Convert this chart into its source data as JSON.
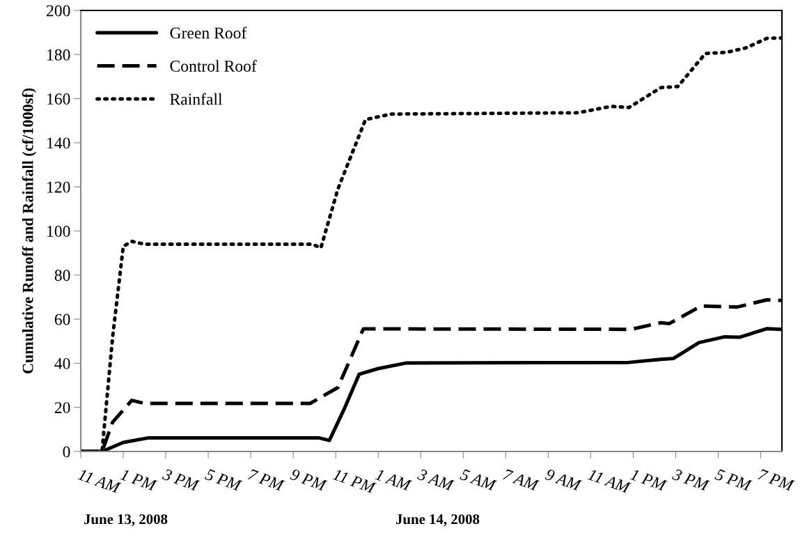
{
  "chart_data": {
    "type": "line",
    "ylabel": "Cumulative Runoff and Rainfall (cf/1000sf)",
    "xlim": [
      "2008-06-13T11:00",
      "2008-06-14T20:00"
    ],
    "xticks": [
      {
        "value": "2008-06-13T11:00",
        "label": "11 AM"
      },
      {
        "value": "2008-06-13T13:00",
        "label": "1 PM"
      },
      {
        "value": "2008-06-13T15:00",
        "label": "3 PM"
      },
      {
        "value": "2008-06-13T17:00",
        "label": "5 PM"
      },
      {
        "value": "2008-06-13T19:00",
        "label": "7 PM"
      },
      {
        "value": "2008-06-13T21:00",
        "label": "9 PM"
      },
      {
        "value": "2008-06-13T23:00",
        "label": "11 PM"
      },
      {
        "value": "2008-06-14T01:00",
        "label": "1 AM"
      },
      {
        "value": "2008-06-14T03:00",
        "label": "3 AM"
      },
      {
        "value": "2008-06-14T05:00",
        "label": "5 AM"
      },
      {
        "value": "2008-06-14T07:00",
        "label": "7 AM"
      },
      {
        "value": "2008-06-14T09:00",
        "label": "9 AM"
      },
      {
        "value": "2008-06-14T11:00",
        "label": "11 AM"
      },
      {
        "value": "2008-06-14T13:00",
        "label": "1 PM"
      },
      {
        "value": "2008-06-14T15:00",
        "label": "3 PM"
      },
      {
        "value": "2008-06-14T17:00",
        "label": "5 PM"
      },
      {
        "value": "2008-06-14T19:00",
        "label": "7 PM"
      }
    ],
    "ylim": [
      0,
      200
    ],
    "yticks": [
      0,
      20,
      40,
      60,
      80,
      100,
      120,
      140,
      160,
      180,
      200
    ],
    "grid": false,
    "legend": "top left",
    "marker": "none",
    "annotations": [
      "June 13, 2008",
      "June 14, 2008"
    ],
    "series": [
      {
        "name": "Green Roof",
        "color": "#000000",
        "line_style": "solid",
        "x": [
          "2008-06-13T11:00",
          "2008-06-13T12:00",
          "2008-06-13T13:00",
          "2008-06-13T14:12",
          "2008-06-13T22:12",
          "2008-06-13T22:42",
          "2008-06-13T23:24",
          "2008-06-14T00:06",
          "2008-06-14T01:00",
          "2008-06-14T02:18",
          "2008-06-14T12:48",
          "2008-06-14T14:18",
          "2008-06-14T14:54",
          "2008-06-14T16:06",
          "2008-06-14T17:18",
          "2008-06-14T18:00",
          "2008-06-14T19:18",
          "2008-06-14T20:00"
        ],
        "values": [
          0,
          0,
          4.1,
          6.2,
          6.2,
          5,
          19.3,
          35,
          37.6,
          40.1,
          40.4,
          41.8,
          42.2,
          49.4,
          52,
          51.8,
          55.7,
          55.4
        ]
      },
      {
        "name": "Control Roof",
        "color": "#000000",
        "line_style": "dashed",
        "x": [
          "2008-06-13T11:00",
          "2008-06-13T12:00",
          "2008-06-13T12:30",
          "2008-06-13T13:24",
          "2008-06-13T14:00",
          "2008-06-13T21:48",
          "2008-06-13T23:06",
          "2008-06-14T00:18",
          "2008-06-14T00:36",
          "2008-06-14T12:54",
          "2008-06-14T14:18",
          "2008-06-14T14:42",
          "2008-06-14T16:12",
          "2008-06-14T17:54",
          "2008-06-14T19:18",
          "2008-06-14T20:00"
        ],
        "values": [
          0,
          0,
          13.3,
          23.2,
          21.8,
          21.8,
          29,
          55.6,
          55.6,
          55.4,
          58.4,
          58,
          66,
          65.5,
          68.8,
          68.5
        ]
      },
      {
        "name": "Rainfall",
        "color": "#000000",
        "line_style": "dotted",
        "x": [
          "2008-06-13T11:00",
          "2008-06-13T12:00",
          "2008-06-13T12:30",
          "2008-06-13T13:00",
          "2008-06-13T13:24",
          "2008-06-13T14:00",
          "2008-06-13T21:54",
          "2008-06-13T22:18",
          "2008-06-13T23:06",
          "2008-06-14T00:24",
          "2008-06-14T01:36",
          "2008-06-14T10:24",
          "2008-06-14T11:57",
          "2008-06-14T12:48",
          "2008-06-14T14:18",
          "2008-06-14T15:06",
          "2008-06-14T16:24",
          "2008-06-14T17:24",
          "2008-06-14T18:18",
          "2008-06-14T19:18",
          "2008-06-14T20:00"
        ],
        "values": [
          0,
          0,
          52,
          93,
          95.3,
          94,
          94,
          92.3,
          119,
          150.5,
          153,
          153.6,
          156.5,
          156,
          165,
          165.5,
          180.5,
          181,
          183,
          187.4,
          187.5
        ]
      }
    ]
  }
}
